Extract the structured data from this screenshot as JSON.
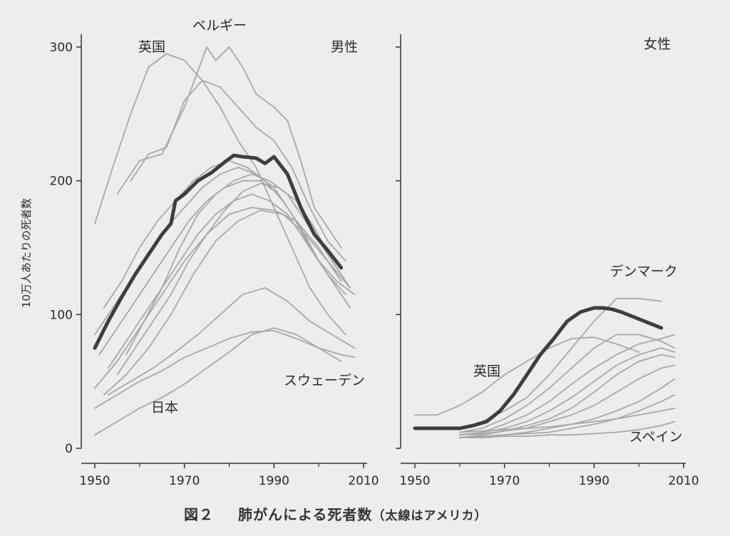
{
  "caption": {
    "figure_number": "図２",
    "title": "肺がんによる死者数",
    "note": "（太線はアメリカ）"
  },
  "chart_data": [
    {
      "type": "line",
      "panel": "男性",
      "ylabel": "10万人あたりの死者数",
      "xlim": [
        1950,
        2010
      ],
      "ylim": [
        0,
        300
      ],
      "x_ticks": [
        1950,
        1970,
        1990,
        2010
      ],
      "y_ticks": [
        0,
        100,
        200,
        300
      ],
      "annotations": [
        "ベルギー",
        "英国",
        "男性",
        "スウェーデン",
        "日本"
      ],
      "series": [
        {
          "name": "アメリカ",
          "highlight": true,
          "x": [
            1950,
            1953,
            1956,
            1959,
            1962,
            1965,
            1967,
            1968,
            1970,
            1973,
            1976,
            1979,
            1981,
            1983,
            1986,
            1988,
            1990,
            1993,
            1996,
            1999,
            2002,
            2005
          ],
          "y": [
            75,
            95,
            113,
            130,
            145,
            160,
            168,
            185,
            190,
            200,
            206,
            214,
            219,
            218,
            217,
            213,
            218,
            205,
            180,
            160,
            148,
            135
          ]
        },
        {
          "name": "英国",
          "x": [
            1950,
            1954,
            1958,
            1962,
            1966,
            1970,
            1974,
            1978,
            1982,
            1986,
            1990,
            1994,
            1998,
            2002,
            2006
          ],
          "y": [
            168,
            210,
            250,
            285,
            295,
            290,
            275,
            255,
            230,
            210,
            180,
            150,
            120,
            100,
            85
          ]
        },
        {
          "name": "ベルギー",
          "x": [
            1955,
            1960,
            1965,
            1970,
            1975,
            1977,
            1980,
            1983,
            1986,
            1990,
            1993,
            1996,
            1999,
            2002,
            2005
          ],
          "y": [
            190,
            215,
            220,
            255,
            300,
            290,
            300,
            285,
            265,
            255,
            245,
            215,
            180,
            165,
            150
          ]
        },
        {
          "name": "",
          "x": [
            1958,
            1962,
            1966,
            1970,
            1974,
            1978,
            1982,
            1986,
            1990,
            1994,
            1998,
            2002,
            2006
          ],
          "y": [
            200,
            220,
            225,
            260,
            275,
            270,
            255,
            240,
            230,
            210,
            180,
            155,
            140
          ]
        },
        {
          "name": "",
          "x": [
            1952,
            1956,
            1960,
            1964,
            1968,
            1972,
            1976,
            1980,
            1984,
            1988,
            1992,
            1996,
            2000,
            2004,
            2008
          ],
          "y": [
            105,
            125,
            150,
            170,
            185,
            200,
            210,
            215,
            210,
            200,
            185,
            165,
            140,
            125,
            115
          ]
        },
        {
          "name": "",
          "x": [
            1950,
            1954,
            1958,
            1962,
            1966,
            1970,
            1974,
            1978,
            1982,
            1986,
            1990,
            1994,
            1998,
            2002,
            2006
          ],
          "y": [
            85,
            105,
            125,
            145,
            165,
            180,
            195,
            205,
            210,
            205,
            195,
            175,
            150,
            130,
            115
          ]
        },
        {
          "name": "",
          "x": [
            1951,
            1955,
            1959,
            1963,
            1967,
            1971,
            1975,
            1979,
            1983,
            1987,
            1991,
            1995,
            1999,
            2003,
            2007
          ],
          "y": [
            70,
            90,
            110,
            130,
            150,
            170,
            185,
            195,
            200,
            200,
            190,
            170,
            145,
            125,
            105
          ]
        },
        {
          "name": "",
          "x": [
            1953,
            1957,
            1961,
            1965,
            1969,
            1973,
            1977,
            1981,
            1985,
            1989,
            1993,
            1997,
            2001,
            2005
          ],
          "y": [
            60,
            80,
            100,
            120,
            140,
            160,
            175,
            185,
            190,
            185,
            175,
            155,
            135,
            115
          ]
        },
        {
          "name": "",
          "x": [
            1955,
            1959,
            1963,
            1967,
            1971,
            1975,
            1979,
            1983,
            1987,
            1991,
            1995,
            1999,
            2003,
            2007
          ],
          "y": [
            55,
            75,
            95,
            115,
            140,
            160,
            178,
            192,
            198,
            195,
            185,
            165,
            140,
            120
          ]
        },
        {
          "name": "",
          "x": [
            1957,
            1961,
            1965,
            1969,
            1973,
            1977,
            1981,
            1985,
            1989,
            1993,
            1997,
            2001,
            2005
          ],
          "y": [
            70,
            95,
            120,
            150,
            175,
            190,
            200,
            205,
            200,
            190,
            170,
            150,
            130
          ]
        },
        {
          "name": "",
          "x": [
            1950,
            1955,
            1960,
            1965,
            1970,
            1975,
            1980,
            1985,
            1990,
            1995,
            2000,
            2005
          ],
          "y": [
            45,
            65,
            90,
            115,
            140,
            160,
            175,
            180,
            178,
            170,
            150,
            125
          ]
        },
        {
          "name": "",
          "x": [
            1952,
            1957,
            1962,
            1967,
            1972,
            1977,
            1982,
            1987,
            1992,
            1997,
            2002,
            2007
          ],
          "y": [
            40,
            55,
            75,
            100,
            130,
            155,
            170,
            178,
            175,
            160,
            140,
            120
          ]
        },
        {
          "name": "スウェーデン",
          "x": [
            1950,
            1955,
            1960,
            1965,
            1970,
            1975,
            1980,
            1985,
            1990,
            1995,
            2000,
            2005,
            2008
          ],
          "y": [
            30,
            40,
            50,
            58,
            68,
            75,
            82,
            87,
            88,
            82,
            75,
            70,
            68
          ]
        },
        {
          "name": "",
          "x": [
            1953,
            1958,
            1963,
            1968,
            1973,
            1978,
            1983,
            1988,
            1993,
            1998,
            2003,
            2008
          ],
          "y": [
            40,
            50,
            60,
            72,
            85,
            100,
            115,
            120,
            110,
            95,
            85,
            75
          ]
        },
        {
          "name": "日本",
          "x": [
            1950,
            1955,
            1960,
            1965,
            1970,
            1975,
            1980,
            1985,
            1990,
            1995,
            2000,
            2005
          ],
          "y": [
            10,
            20,
            30,
            38,
            48,
            60,
            72,
            85,
            90,
            85,
            75,
            65
          ]
        }
      ]
    },
    {
      "type": "line",
      "panel": "女性",
      "xlim": [
        1950,
        2010
      ],
      "ylim": [
        0,
        300
      ],
      "x_ticks": [
        1950,
        1970,
        1990,
        2010
      ],
      "annotations": [
        "女性",
        "デンマーク",
        "英国",
        "スペイン"
      ],
      "series": [
        {
          "name": "アメリカ",
          "highlight": true,
          "x": [
            1950,
            1955,
            1960,
            1963,
            1966,
            1969,
            1972,
            1975,
            1978,
            1981,
            1984,
            1987,
            1990,
            1992,
            1994,
            1996,
            1999,
            2002,
            2005
          ],
          "y": [
            15,
            15,
            15,
            17,
            20,
            28,
            40,
            55,
            70,
            82,
            95,
            102,
            105,
            105,
            104,
            102,
            98,
            94,
            90
          ]
        },
        {
          "name": "英国",
          "x": [
            1950,
            1955,
            1960,
            1965,
            1970,
            1975,
            1980,
            1985,
            1990,
            1995,
            2000
          ],
          "y": [
            25,
            25,
            32,
            42,
            55,
            65,
            75,
            82,
            83,
            78,
            72
          ]
        },
        {
          "name": "デンマーク",
          "x": [
            1960,
            1965,
            1970,
            1975,
            1980,
            1985,
            1990,
            1995,
            2000,
            2005
          ],
          "y": [
            15,
            20,
            28,
            38,
            55,
            75,
            95,
            112,
            112,
            110
          ]
        },
        {
          "name": "",
          "x": [
            1960,
            1965,
            1970,
            1975,
            1980,
            1985,
            1990,
            1995,
            2000,
            2005,
            2008
          ],
          "y": [
            12,
            15,
            22,
            32,
            45,
            60,
            75,
            85,
            85,
            80,
            75
          ]
        },
        {
          "name": "",
          "x": [
            1960,
            1965,
            1970,
            1975,
            1980,
            1985,
            1990,
            1995,
            2000,
            2005,
            2008
          ],
          "y": [
            10,
            12,
            18,
            25,
            35,
            48,
            60,
            70,
            78,
            82,
            85
          ]
        },
        {
          "name": "",
          "x": [
            1960,
            1965,
            1970,
            1975,
            1980,
            1985,
            1990,
            1995,
            2000,
            2005,
            2008
          ],
          "y": [
            10,
            12,
            15,
            20,
            28,
            38,
            50,
            62,
            70,
            75,
            72
          ]
        },
        {
          "name": "",
          "x": [
            1960,
            1965,
            1970,
            1975,
            1980,
            1985,
            1990,
            1995,
            2000,
            2005,
            2008
          ],
          "y": [
            8,
            10,
            13,
            17,
            22,
            30,
            42,
            55,
            65,
            70,
            68
          ]
        },
        {
          "name": "",
          "x": [
            1960,
            1965,
            1970,
            1975,
            1980,
            1985,
            1990,
            1995,
            2000,
            2005,
            2008
          ],
          "y": [
            10,
            11,
            13,
            15,
            20,
            25,
            32,
            42,
            52,
            60,
            62
          ]
        },
        {
          "name": "",
          "x": [
            1960,
            1965,
            1970,
            1975,
            1980,
            1985,
            1990,
            1995,
            2000,
            2005,
            2008
          ],
          "y": [
            8,
            9,
            10,
            12,
            15,
            18,
            22,
            28,
            35,
            45,
            52
          ]
        },
        {
          "name": "",
          "x": [
            1960,
            1965,
            1970,
            1975,
            1980,
            1985,
            1990,
            1995,
            2000,
            2005,
            2008
          ],
          "y": [
            8,
            9,
            10,
            11,
            12,
            15,
            18,
            22,
            28,
            35,
            40
          ]
        },
        {
          "name": "",
          "x": [
            1960,
            1965,
            1970,
            1975,
            1980,
            1985,
            1990,
            1995,
            2000,
            2005,
            2008
          ],
          "y": [
            12,
            13,
            14,
            15,
            16,
            18,
            20,
            22,
            25,
            28,
            30
          ]
        },
        {
          "name": "スペイン",
          "x": [
            1960,
            1965,
            1970,
            1975,
            1980,
            1985,
            1990,
            1995,
            2000,
            2005,
            2008
          ],
          "y": [
            8,
            8,
            9,
            9,
            10,
            10,
            11,
            12,
            14,
            17,
            20
          ]
        }
      ]
    }
  ]
}
